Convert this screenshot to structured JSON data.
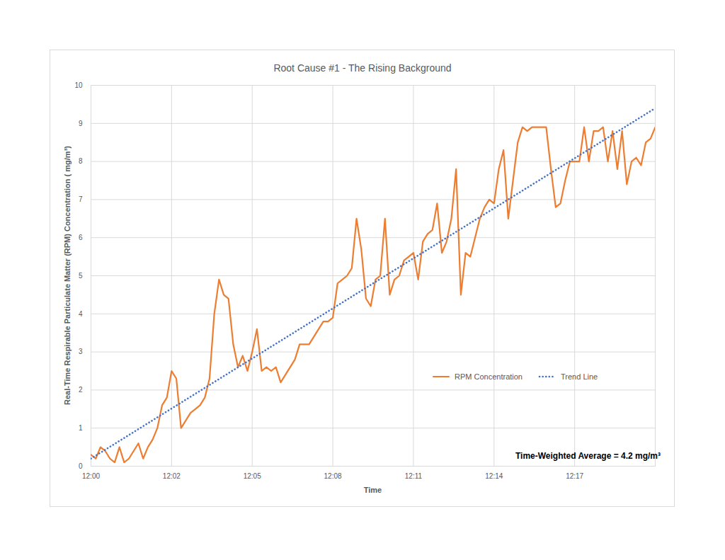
{
  "chart_data": {
    "type": "line",
    "title": "Root Cause #1 - The Rising Background",
    "x_label": "Time",
    "y_label": "Real-Time Respirable Particulate Matter (RPM) Concentration ( mg/m³)",
    "annotation": "Time-Weighted Average = 4.2 mg/m³",
    "x": [
      0,
      10,
      20,
      30,
      40,
      50,
      60,
      70,
      80,
      90,
      100,
      110,
      120,
      130,
      140,
      150,
      160,
      170,
      180,
      190,
      200,
      210,
      220,
      230,
      240,
      250,
      260,
      270,
      280,
      290,
      300,
      310,
      320,
      330,
      340,
      350,
      360,
      370,
      380,
      390,
      400,
      410,
      420,
      430,
      440,
      450,
      460,
      470,
      480,
      490,
      500,
      510,
      520,
      530,
      540,
      550,
      560,
      570,
      580,
      590,
      600,
      610,
      620,
      630,
      640,
      650,
      660,
      670,
      680,
      690,
      700,
      710,
      720,
      730,
      740,
      750,
      760,
      770,
      780,
      790,
      800,
      810,
      820,
      830,
      840,
      850,
      860,
      870,
      880,
      890,
      900,
      910,
      920,
      930,
      940,
      950,
      960,
      970,
      980,
      990,
      1000,
      1010,
      1020,
      1030,
      1040,
      1050,
      1060,
      1070,
      1080,
      1090,
      1100,
      1110,
      1120,
      1130,
      1140,
      1150,
      1160,
      1170,
      1180,
      1190
    ],
    "series": [
      {
        "name": "RPM Concentration",
        "color": "#ed7d31",
        "line_style": "solid",
        "values": [
          0.3,
          0.2,
          0.5,
          0.4,
          0.2,
          0.1,
          0.5,
          0.1,
          0.2,
          0.4,
          0.6,
          0.2,
          0.5,
          0.7,
          1.0,
          1.6,
          1.8,
          2.5,
          2.3,
          1.0,
          1.2,
          1.4,
          1.5,
          1.6,
          1.8,
          2.3,
          4.0,
          4.9,
          4.5,
          4.4,
          3.2,
          2.6,
          2.9,
          2.5,
          3.0,
          3.6,
          2.5,
          2.6,
          2.5,
          2.6,
          2.2,
          2.4,
          2.6,
          2.8,
          3.2,
          3.2,
          3.2,
          3.4,
          3.6,
          3.8,
          3.8,
          3.9,
          4.8,
          4.9,
          5.0,
          5.2,
          6.5,
          5.7,
          4.4,
          4.2,
          4.9,
          5.0,
          6.5,
          4.5,
          4.9,
          5.0,
          5.4,
          5.5,
          5.6,
          4.9,
          5.9,
          6.1,
          6.2,
          6.9,
          5.6,
          5.9,
          6.5,
          7.8,
          4.5,
          5.6,
          5.5,
          6.0,
          6.5,
          6.8,
          7.0,
          6.9,
          7.8,
          8.3,
          6.5,
          7.5,
          8.5,
          8.9,
          8.8,
          8.9,
          8.9,
          8.9,
          8.9,
          7.8,
          6.8,
          6.9,
          7.5,
          8.0,
          8.0,
          8.0,
          8.9,
          8.0,
          8.8,
          8.8,
          8.9,
          8.0,
          8.8,
          7.8,
          8.8,
          7.4,
          8.0,
          8.1,
          7.9,
          8.5,
          8.6,
          8.9
        ]
      },
      {
        "name": "Trend Line",
        "color": "#4472c4",
        "line_style": "dotted",
        "x": [
          0,
          1190
        ],
        "values": [
          0.2,
          9.4
        ]
      }
    ],
    "xlim": [
      0,
      1190
    ],
    "xticks": [
      {
        "value": 0,
        "label": "12:00"
      },
      {
        "value": 170,
        "label": "12:02"
      },
      {
        "value": 340,
        "label": "12:05"
      },
      {
        "value": 510,
        "label": "12:08"
      },
      {
        "value": 680,
        "label": "12:11"
      },
      {
        "value": 850,
        "label": "12:14"
      },
      {
        "value": 1020,
        "label": "12:17"
      }
    ],
    "ylim": [
      0,
      10
    ],
    "yticks": [
      0,
      1,
      2,
      3,
      4,
      5,
      6,
      7,
      8,
      9,
      10
    ],
    "grid": true,
    "legend": "lower right"
  }
}
